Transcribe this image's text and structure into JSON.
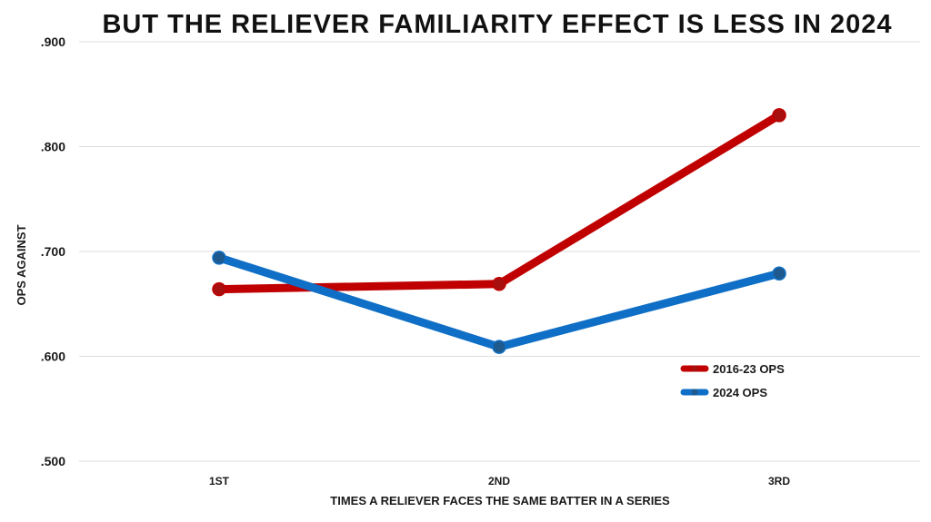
{
  "chart_data": {
    "type": "line",
    "title": "BUT THE RELIEVER FAMILIARITY EFFECT IS LESS IN 2024",
    "xlabel": "TIMES A RELIEVER FACES THE SAME BATTER IN A SERIES",
    "ylabel": "OPS AGAINST",
    "categories": [
      "1ST",
      "2ND",
      "3RD"
    ],
    "ylim": [
      0.5,
      0.9
    ],
    "yticks": [
      0.9,
      0.8,
      0.7,
      0.6,
      0.5
    ],
    "ytick_labels": [
      ".900",
      ".800",
      ".700",
      ".600",
      ".500"
    ],
    "grid": true,
    "legend_position": "bottom-right",
    "series": [
      {
        "name": "2016-23 OPS",
        "color": "#c00000",
        "marker_color": "#a80f0f",
        "values": [
          0.664,
          0.669,
          0.83
        ]
      },
      {
        "name": "2024 OPS",
        "color": "#0f6fc6",
        "marker_color": "#1f5a8f",
        "values": [
          0.694,
          0.609,
          0.679
        ]
      }
    ]
  }
}
